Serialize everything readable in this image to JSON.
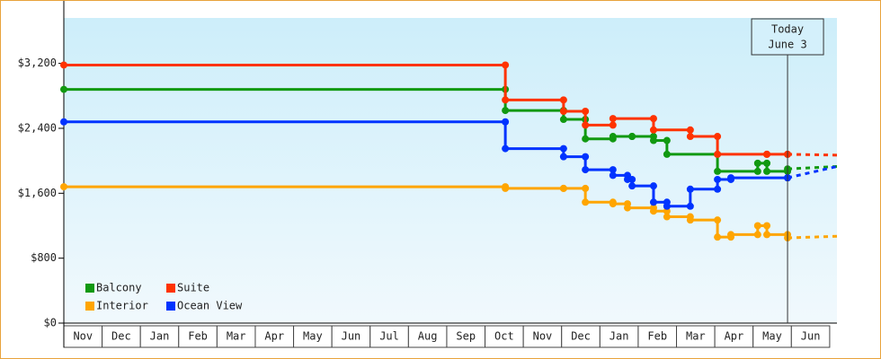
{
  "chart_data": {
    "type": "step",
    "xlim": [
      0,
      20.19
    ],
    "ylim": [
      0,
      3760
    ],
    "yticks": [
      {
        "value": 0,
        "label": "$0"
      },
      {
        "value": 800,
        "label": "$800"
      },
      {
        "value": 1600,
        "label": "$1,600"
      },
      {
        "value": 2400,
        "label": "$2,400"
      },
      {
        "value": 3200,
        "label": "$3,200"
      }
    ],
    "months": [
      "Nov",
      "Dec",
      "Jan",
      "Feb",
      "Mar",
      "Apr",
      "May",
      "Jun",
      "Jul",
      "Aug",
      "Sep",
      "Oct",
      "Nov",
      "Dec",
      "Jan",
      "Feb",
      "Mar",
      "Apr",
      "May",
      "Jun"
    ],
    "today": {
      "x": 18.9,
      "label": [
        "Today",
        "June 3"
      ]
    },
    "series": [
      {
        "name": "Balcony",
        "color": "#119911",
        "x": [
          0,
          11.53,
          13.05,
          13.62,
          14.34,
          14.84,
          15.4,
          15.75,
          17.07,
          18.12,
          18.36,
          18.9
        ],
        "values": [
          2880,
          2620,
          2510,
          2270,
          2300,
          2300,
          2250,
          2080,
          1870,
          1970,
          1870,
          1900
        ],
        "forecast": 1930
      },
      {
        "name": "Suite",
        "color": "#ff3300",
        "x": [
          0,
          11.53,
          13.05,
          13.62,
          14.34,
          15.4,
          16.36,
          17.07,
          18.36,
          18.9
        ],
        "values": [
          3180,
          2750,
          2610,
          2440,
          2520,
          2380,
          2300,
          2080,
          2080,
          2080
        ],
        "forecast": 2070
      },
      {
        "name": "Interior",
        "color": "#ffa500",
        "x": [
          0,
          11.53,
          13.05,
          13.62,
          14.34,
          14.72,
          15.4,
          15.75,
          16.36,
          17.07,
          17.42,
          18.12,
          18.36,
          18.9
        ],
        "values": [
          1680,
          1660,
          1660,
          1490,
          1470,
          1420,
          1380,
          1310,
          1270,
          1060,
          1090,
          1200,
          1090,
          1050
        ],
        "forecast": 1070
      },
      {
        "name": "Ocean View",
        "color": "#0033ff",
        "x": [
          0,
          11.53,
          13.05,
          13.62,
          14.34,
          14.72,
          14.84,
          15.4,
          15.75,
          16.36,
          17.07,
          17.42,
          18.9
        ],
        "values": [
          2480,
          2150,
          2050,
          1890,
          1820,
          1770,
          1690,
          1490,
          1440,
          1650,
          1770,
          1790,
          1790
        ],
        "forecast": 1930
      }
    ]
  }
}
